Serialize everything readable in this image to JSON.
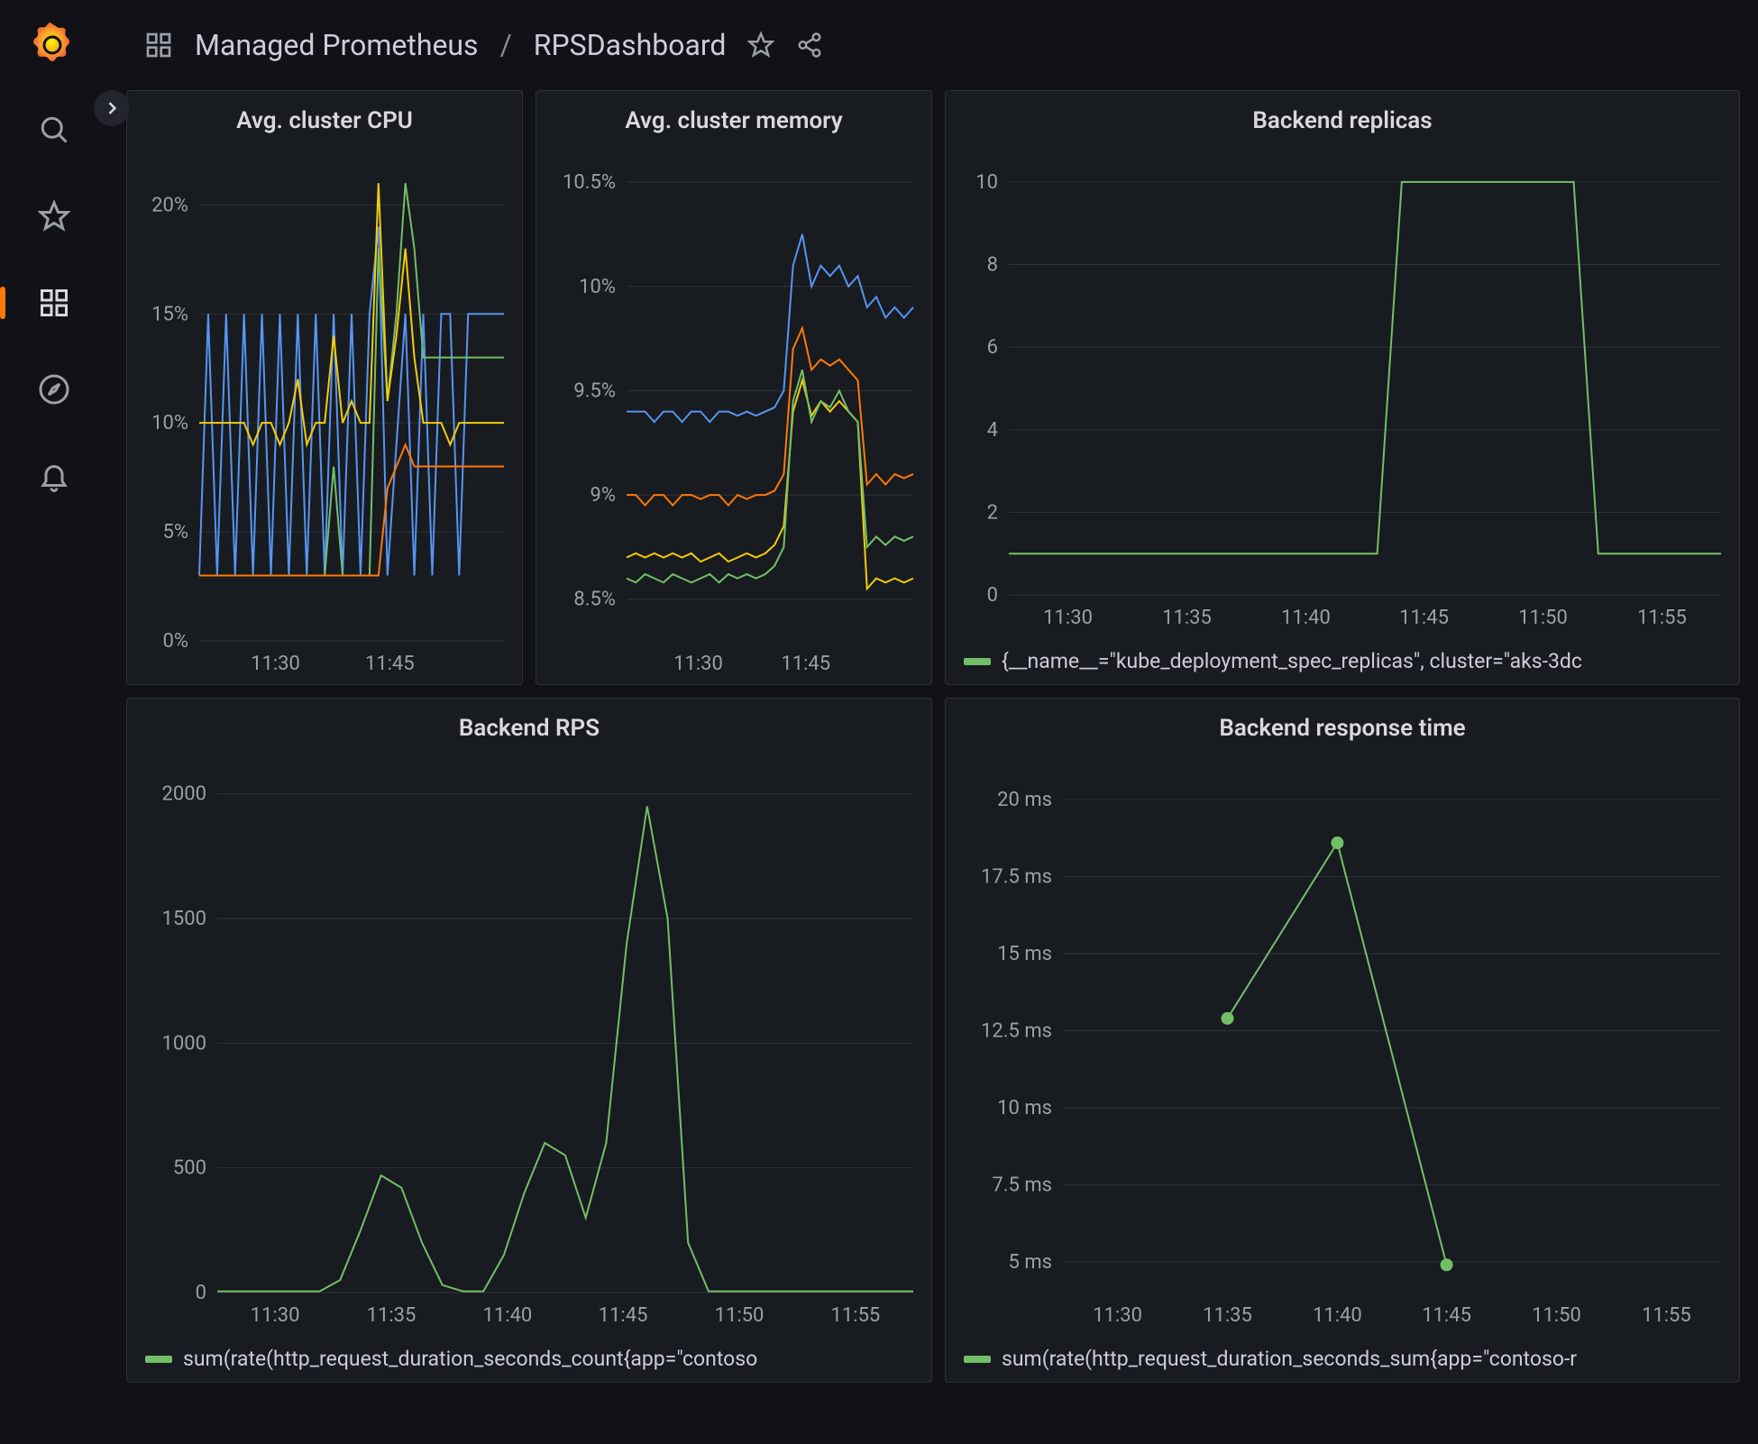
{
  "colors": {
    "bg": "#111217",
    "panel_bg": "#181b1f",
    "grid": "#2f3337",
    "text": "#9aa0a6",
    "green": "#73bf69",
    "yellow": "#f2cc0c",
    "orange": "#ff780a",
    "blue": "#5794f2",
    "red": "#e02f44"
  },
  "breadcrumb": {
    "folder": "Managed Prometheus",
    "dashboard": "RPSDashboard"
  },
  "panels": {
    "cpu": {
      "title": "Avg. cluster CPU",
      "type": "line",
      "x_labels": [
        "11:30",
        "11:45"
      ],
      "x_tick_positions": [
        0.25,
        0.625
      ],
      "y_ticks": [
        0,
        5,
        10,
        15,
        20
      ],
      "y_suffix": "%",
      "ylim": [
        0,
        22
      ],
      "series": [
        {
          "color": "#5794f2",
          "y": [
            3,
            15,
            3,
            15,
            3,
            15,
            3,
            15,
            3,
            15,
            3,
            15,
            3,
            15,
            3,
            15,
            3,
            15,
            3,
            15,
            19,
            3,
            9,
            15,
            3,
            15,
            3,
            15,
            15,
            3,
            15,
            15,
            15,
            15,
            15
          ]
        },
        {
          "color": "#73bf69",
          "y": [
            3,
            3,
            3,
            3,
            3,
            3,
            3,
            3,
            3,
            3,
            3,
            3,
            3,
            3,
            3,
            8,
            3,
            3,
            3,
            3,
            18,
            11,
            15,
            21,
            18,
            13,
            13,
            13,
            13,
            13,
            13,
            13,
            13,
            13,
            13
          ]
        },
        {
          "color": "#f2cc0c",
          "y": [
            10,
            10,
            10,
            10,
            10,
            10,
            9,
            10,
            10,
            9,
            10,
            12,
            9,
            10,
            10,
            14,
            10,
            11,
            10,
            10,
            21,
            11,
            14,
            18,
            13,
            10,
            10,
            10,
            9,
            10,
            10,
            10,
            10,
            10,
            10
          ]
        },
        {
          "color": "#ff780a",
          "y": [
            3,
            3,
            3,
            3,
            3,
            3,
            3,
            3,
            3,
            3,
            3,
            3,
            3,
            3,
            3,
            3,
            3,
            3,
            3,
            3,
            3,
            7,
            8,
            9,
            8,
            8,
            8,
            8,
            8,
            8,
            8,
            8,
            8,
            8,
            8
          ]
        }
      ]
    },
    "memory": {
      "title": "Avg. cluster memory",
      "type": "line",
      "x_labels": [
        "11:30",
        "11:45"
      ],
      "x_tick_positions": [
        0.25,
        0.625
      ],
      "y_ticks": [
        8.5,
        9.0,
        9.5,
        10.0,
        10.5
      ],
      "y_suffix": "%",
      "ylim": [
        8.3,
        10.6
      ],
      "series": [
        {
          "color": "#5794f2",
          "y": [
            9.4,
            9.4,
            9.4,
            9.35,
            9.4,
            9.4,
            9.35,
            9.4,
            9.4,
            9.35,
            9.4,
            9.4,
            9.38,
            9.4,
            9.38,
            9.4,
            9.42,
            9.5,
            10.1,
            10.25,
            10.0,
            10.1,
            10.05,
            10.1,
            10.0,
            10.05,
            9.9,
            9.95,
            9.85,
            9.9,
            9.85,
            9.9
          ]
        },
        {
          "color": "#ff780a",
          "y": [
            9.0,
            9.0,
            8.95,
            9.0,
            9.0,
            8.95,
            9.0,
            9.0,
            8.98,
            9.0,
            9.0,
            8.95,
            9.0,
            8.98,
            9.0,
            9.0,
            9.02,
            9.1,
            9.7,
            9.8,
            9.6,
            9.65,
            9.62,
            9.65,
            9.6,
            9.55,
            9.05,
            9.1,
            9.05,
            9.1,
            9.08,
            9.1
          ]
        },
        {
          "color": "#f2cc0c",
          "y": [
            8.7,
            8.72,
            8.7,
            8.72,
            8.7,
            8.72,
            8.7,
            8.72,
            8.68,
            8.7,
            8.72,
            8.68,
            8.7,
            8.72,
            8.7,
            8.72,
            8.76,
            8.85,
            9.4,
            9.55,
            9.38,
            9.45,
            9.4,
            9.45,
            9.4,
            9.35,
            8.55,
            8.6,
            8.58,
            8.6,
            8.58,
            8.6
          ]
        },
        {
          "color": "#73bf69",
          "y": [
            8.6,
            8.58,
            8.62,
            8.6,
            8.58,
            8.62,
            8.6,
            8.58,
            8.6,
            8.62,
            8.58,
            8.62,
            8.6,
            8.62,
            8.6,
            8.62,
            8.66,
            8.75,
            9.45,
            9.6,
            9.35,
            9.45,
            9.42,
            9.5,
            9.4,
            9.35,
            8.75,
            8.8,
            8.76,
            8.8,
            8.78,
            8.8
          ]
        }
      ]
    },
    "replicas": {
      "title": "Backend replicas",
      "type": "line",
      "x_labels": [
        "11:30",
        "11:35",
        "11:40",
        "11:45",
        "11:50",
        "11:55"
      ],
      "x_tick_positions": [
        0.083,
        0.25,
        0.417,
        0.583,
        0.75,
        0.917
      ],
      "y_ticks": [
        0,
        2,
        4,
        6,
        8,
        10
      ],
      "y_suffix": "",
      "ylim": [
        0,
        10.5
      ],
      "legend": "{__name__=\"kube_deployment_spec_replicas\", cluster=\"aks-3dc",
      "legend_color": "#73bf69",
      "series": [
        {
          "color": "#73bf69",
          "y": [
            1,
            1,
            1,
            1,
            1,
            1,
            1,
            1,
            1,
            1,
            1,
            1,
            1,
            1,
            1,
            1,
            10,
            10,
            10,
            10,
            10,
            10,
            10,
            10,
            1,
            1,
            1,
            1,
            1,
            1
          ]
        }
      ]
    },
    "rps": {
      "title": "Backend RPS",
      "type": "line",
      "x_labels": [
        "11:30",
        "11:35",
        "11:40",
        "11:45",
        "11:50",
        "11:55"
      ],
      "x_tick_positions": [
        0.083,
        0.25,
        0.417,
        0.583,
        0.75,
        0.917
      ],
      "y_ticks": [
        0,
        500,
        1000,
        1500,
        2000
      ],
      "y_suffix": "",
      "ylim": [
        0,
        2100
      ],
      "legend": "sum(rate(http_request_duration_seconds_count{app=\"contoso",
      "legend_color": "#73bf69",
      "series": [
        {
          "color": "#73bf69",
          "y": [
            5,
            5,
            5,
            5,
            5,
            5,
            50,
            250,
            470,
            420,
            200,
            30,
            5,
            5,
            150,
            400,
            600,
            550,
            300,
            600,
            1400,
            1950,
            1500,
            200,
            5,
            5,
            5,
            5,
            5,
            5,
            5,
            5,
            5,
            5,
            5
          ]
        }
      ]
    },
    "resptime": {
      "title": "Backend response time",
      "type": "line_points",
      "x_labels": [
        "11:30",
        "11:35",
        "11:40",
        "11:45",
        "11:50",
        "11:55"
      ],
      "x_tick_positions": [
        0.083,
        0.25,
        0.417,
        0.583,
        0.75,
        0.917
      ],
      "y_ticks": [
        5,
        7.5,
        10,
        12.5,
        15,
        17.5,
        20
      ],
      "y_suffix": " ms",
      "ylim": [
        4,
        21
      ],
      "legend": "sum(rate(http_request_duration_seconds_sum{app=\"contoso-r",
      "legend_color": "#73bf69",
      "series": [
        {
          "color": "#73bf69",
          "points": [
            {
              "x": 0.25,
              "y": 12.9
            },
            {
              "x": 0.417,
              "y": 18.6
            },
            {
              "x": 0.583,
              "y": 4.9
            }
          ]
        }
      ]
    }
  }
}
